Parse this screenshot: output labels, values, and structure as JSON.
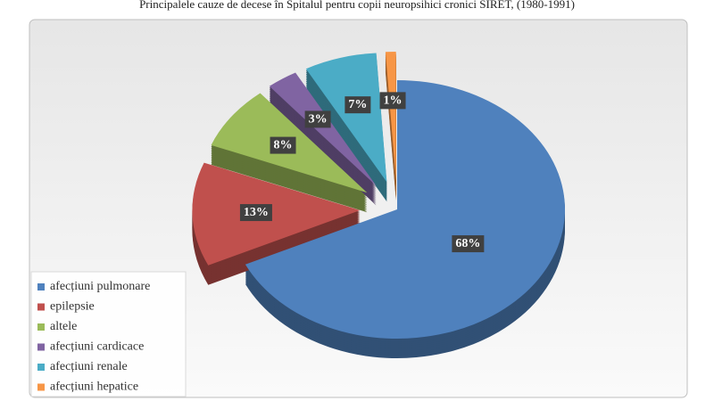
{
  "chart_data": {
    "type": "pie",
    "title": "Principalele cauze de decese în Spitalul pentru copii neuropsihici cronici SIRET, (1980-1991)",
    "categories": [
      "afecțiuni pulmonare",
      "epilepsie",
      "altele",
      "afecțiuni cardicace",
      "afecțiuni renale",
      "afecțiuni hepatice"
    ],
    "values": [
      68,
      13,
      8,
      3,
      7,
      1
    ],
    "value_labels": [
      "68%",
      "13%",
      "8%",
      "3%",
      "7%",
      "1%"
    ],
    "colors": [
      "#4f81bd",
      "#c0504d",
      "#9bbb59",
      "#8064a2",
      "#4bacc6",
      "#f79646"
    ],
    "legend": "bottom-left"
  }
}
